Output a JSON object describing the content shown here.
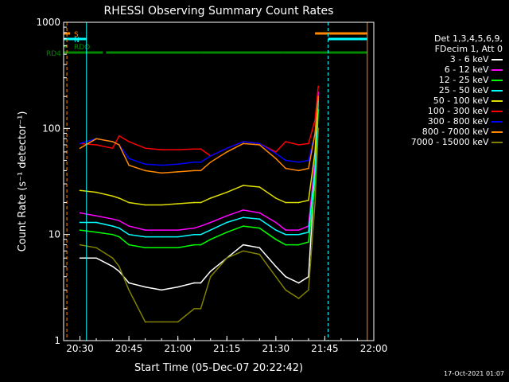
{
  "chart_data": {
    "type": "line",
    "title": "RHESSI Observing Summary Count Rates",
    "xlabel": "Start Time (05-Dec-07 20:22:42)",
    "ylabel": "Count Rate (s⁻¹ detector⁻¹)",
    "ylog": true,
    "ylim": [
      1,
      1000
    ],
    "xlim": [
      "20:25",
      "22:00"
    ],
    "x_ticks": [
      "20:30",
      "20:45",
      "21:00",
      "21:15",
      "21:30",
      "21:45",
      "22:00"
    ],
    "y_ticks": [
      "1",
      "10",
      "100",
      "1000"
    ],
    "timestamp": "17-Oct-2021 01:07",
    "legend_header": [
      "Det 1,3,4,5,6,9,",
      "FDecim 1, Att 0"
    ],
    "series": [
      {
        "name": "3 - 6 keV",
        "color": "#ffffff",
        "values": [
          [
            "20:30",
            6
          ],
          [
            "20:35",
            6
          ],
          [
            "20:40",
            5
          ],
          [
            "20:42",
            4.5
          ],
          [
            "20:45",
            3.5
          ],
          [
            "20:50",
            3.2
          ],
          [
            "20:55",
            3
          ],
          [
            "21:00",
            3.2
          ],
          [
            "21:05",
            3.5
          ],
          [
            "21:07",
            3.5
          ],
          [
            "21:10",
            4.5
          ],
          [
            "21:15",
            6
          ],
          [
            "21:20",
            8
          ],
          [
            "21:25",
            7.5
          ],
          [
            "21:30",
            5
          ],
          [
            "21:33",
            4
          ],
          [
            "21:37",
            3.5
          ],
          [
            "21:40",
            4
          ],
          [
            "21:42",
            40
          ],
          [
            "21:43",
            200
          ]
        ]
      },
      {
        "name": "6 - 12 keV",
        "color": "#ff00ff",
        "values": [
          [
            "20:30",
            16
          ],
          [
            "20:35",
            15
          ],
          [
            "20:40",
            14
          ],
          [
            "20:42",
            13.5
          ],
          [
            "20:45",
            12
          ],
          [
            "20:50",
            11
          ],
          [
            "20:55",
            11
          ],
          [
            "21:00",
            11
          ],
          [
            "21:05",
            11.5
          ],
          [
            "21:07",
            12
          ],
          [
            "21:10",
            13
          ],
          [
            "21:15",
            15
          ],
          [
            "21:20",
            17
          ],
          [
            "21:25",
            16
          ],
          [
            "21:30",
            13
          ],
          [
            "21:33",
            11
          ],
          [
            "21:37",
            11
          ],
          [
            "21:40",
            12
          ],
          [
            "21:42",
            50
          ],
          [
            "21:43",
            220
          ]
        ]
      },
      {
        "name": "12 - 25 keV",
        "color": "#00ff00",
        "values": [
          [
            "20:30",
            11
          ],
          [
            "20:35",
            10.5
          ],
          [
            "20:40",
            10
          ],
          [
            "20:42",
            9.5
          ],
          [
            "20:45",
            8
          ],
          [
            "20:50",
            7.5
          ],
          [
            "20:55",
            7.5
          ],
          [
            "21:00",
            7.5
          ],
          [
            "21:05",
            8
          ],
          [
            "21:07",
            8
          ],
          [
            "21:10",
            9
          ],
          [
            "21:15",
            10.5
          ],
          [
            "21:20",
            12
          ],
          [
            "21:25",
            11.5
          ],
          [
            "21:30",
            9
          ],
          [
            "21:33",
            8
          ],
          [
            "21:37",
            8
          ],
          [
            "21:40",
            8.5
          ],
          [
            "21:42",
            30
          ],
          [
            "21:43",
            150
          ]
        ]
      },
      {
        "name": "25 - 50 keV",
        "color": "#00ffff",
        "values": [
          [
            "20:30",
            13
          ],
          [
            "20:35",
            13
          ],
          [
            "20:40",
            12
          ],
          [
            "20:42",
            11.5
          ],
          [
            "20:45",
            10
          ],
          [
            "20:50",
            9.5
          ],
          [
            "20:55",
            9.5
          ],
          [
            "21:00",
            9.5
          ],
          [
            "21:05",
            10
          ],
          [
            "21:07",
            10
          ],
          [
            "21:10",
            11
          ],
          [
            "21:15",
            13
          ],
          [
            "21:20",
            14.5
          ],
          [
            "21:25",
            14
          ],
          [
            "21:30",
            11
          ],
          [
            "21:33",
            10
          ],
          [
            "21:37",
            10
          ],
          [
            "21:40",
            10.5
          ],
          [
            "21:42",
            40
          ],
          [
            "21:43",
            180
          ]
        ]
      },
      {
        "name": "50 - 100 keV",
        "color": "#dddd00",
        "values": [
          [
            "20:30",
            26
          ],
          [
            "20:35",
            25
          ],
          [
            "20:40",
            23
          ],
          [
            "20:42",
            22
          ],
          [
            "20:45",
            20
          ],
          [
            "20:50",
            19
          ],
          [
            "20:55",
            19
          ],
          [
            "21:00",
            19.5
          ],
          [
            "21:05",
            20
          ],
          [
            "21:07",
            20
          ],
          [
            "21:10",
            22
          ],
          [
            "21:15",
            25
          ],
          [
            "21:20",
            29
          ],
          [
            "21:25",
            28
          ],
          [
            "21:30",
            22
          ],
          [
            "21:33",
            20
          ],
          [
            "21:37",
            20
          ],
          [
            "21:40",
            21
          ],
          [
            "21:42",
            60
          ],
          [
            "21:43",
            200
          ]
        ]
      },
      {
        "name": "100 - 300 keV",
        "color": "#ff0000",
        "values": [
          [
            "20:30",
            72
          ],
          [
            "20:35",
            70
          ],
          [
            "20:40",
            65
          ],
          [
            "20:42",
            85
          ],
          [
            "20:45",
            75
          ],
          [
            "20:50",
            65
          ],
          [
            "20:55",
            63
          ],
          [
            "21:00",
            63
          ],
          [
            "21:05",
            64
          ],
          [
            "21:07",
            64
          ],
          [
            "21:10",
            55
          ],
          [
            "21:15",
            65
          ],
          [
            "21:20",
            75
          ],
          [
            "21:25",
            72
          ],
          [
            "21:30",
            60
          ],
          [
            "21:33",
            75
          ],
          [
            "21:37",
            70
          ],
          [
            "21:40",
            72
          ],
          [
            "21:42",
            120
          ],
          [
            "21:43",
            250
          ]
        ]
      },
      {
        "name": "300 - 800 keV",
        "color": "#0000ff",
        "values": [
          [
            "20:30",
            72
          ],
          [
            "20:35",
            80
          ],
          [
            "20:40",
            75
          ],
          [
            "20:42",
            70
          ],
          [
            "20:45",
            52
          ],
          [
            "20:50",
            46
          ],
          [
            "20:55",
            45
          ],
          [
            "21:00",
            46
          ],
          [
            "21:05",
            48
          ],
          [
            "21:07",
            48
          ],
          [
            "21:10",
            55
          ],
          [
            "21:15",
            65
          ],
          [
            "21:20",
            75
          ],
          [
            "21:25",
            72
          ],
          [
            "21:30",
            58
          ],
          [
            "21:33",
            50
          ],
          [
            "21:37",
            48
          ],
          [
            "21:40",
            50
          ],
          [
            "21:42",
            90
          ],
          [
            "21:43",
            200
          ]
        ]
      },
      {
        "name": "800 - 7000 keV",
        "color": "#ff8800",
        "values": [
          [
            "20:30",
            65
          ],
          [
            "20:35",
            80
          ],
          [
            "20:40",
            75
          ],
          [
            "20:42",
            70
          ],
          [
            "20:45",
            45
          ],
          [
            "20:50",
            40
          ],
          [
            "20:55",
            38
          ],
          [
            "21:00",
            39
          ],
          [
            "21:05",
            40
          ],
          [
            "21:07",
            40
          ],
          [
            "21:10",
            48
          ],
          [
            "21:15",
            60
          ],
          [
            "21:20",
            72
          ],
          [
            "21:25",
            70
          ],
          [
            "21:30",
            52
          ],
          [
            "21:33",
            42
          ],
          [
            "21:37",
            40
          ],
          [
            "21:40",
            42
          ],
          [
            "21:42",
            90
          ],
          [
            "21:43",
            200
          ]
        ]
      },
      {
        "name": "7000 - 15000 keV",
        "color": "#808000",
        "values": [
          [
            "20:30",
            8
          ],
          [
            "20:35",
            7.5
          ],
          [
            "20:40",
            6
          ],
          [
            "20:42",
            5
          ],
          [
            "20:45",
            3
          ],
          [
            "20:50",
            1.5
          ],
          [
            "20:55",
            1.5
          ],
          [
            "21:00",
            1.5
          ],
          [
            "21:05",
            2
          ],
          [
            "21:07",
            2
          ],
          [
            "21:10",
            4
          ],
          [
            "21:15",
            6
          ],
          [
            "21:20",
            7
          ],
          [
            "21:25",
            6.5
          ],
          [
            "21:30",
            4
          ],
          [
            "21:33",
            3
          ],
          [
            "21:37",
            2.5
          ],
          [
            "21:40",
            3
          ],
          [
            "21:42",
            20
          ],
          [
            "21:43",
            100
          ]
        ]
      }
    ],
    "state_bars": [
      {
        "label": "S",
        "color": "#ff8800",
        "segments": [
          [
            "20:25",
            "20:27"
          ],
          [
            "21:42",
            "21:58"
          ]
        ]
      },
      {
        "label": "N",
        "color": "#00ffff",
        "segments": [
          [
            "20:25",
            "20:32"
          ],
          [
            "21:46",
            "21:58"
          ]
        ]
      },
      {
        "label": "RDO",
        "color": "#008800",
        "segments": [
          [
            "20:25",
            "20:26"
          ]
        ]
      },
      {
        "label": "RD4",
        "color": "#008800",
        "segments": [
          [
            "20:25",
            "20:37"
          ],
          [
            "20:38",
            "21:07"
          ],
          [
            "21:07",
            "21:32"
          ],
          [
            "21:32",
            "21:58"
          ]
        ]
      }
    ]
  }
}
